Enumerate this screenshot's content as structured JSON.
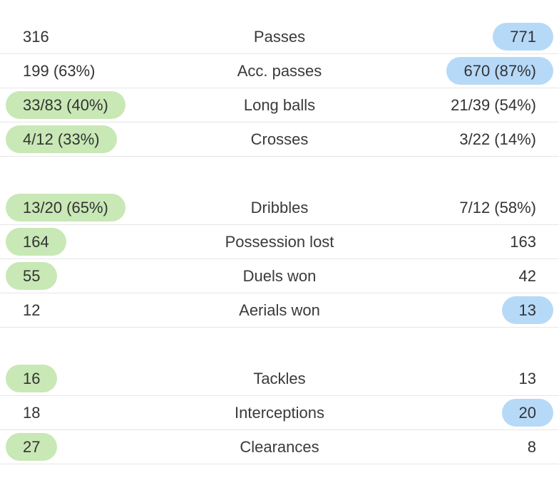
{
  "colors": {
    "home_highlight": "#c8e8b5",
    "away_highlight": "#b7d9f8",
    "divider": "#e6e6e6",
    "text": "#333333"
  },
  "groups": [
    {
      "rows": [
        {
          "label": "Passes",
          "home": "316",
          "away": "771",
          "home_highlight": false,
          "away_highlight": true
        },
        {
          "label": "Acc. passes",
          "home": "199 (63%)",
          "away": "670 (87%)",
          "home_highlight": false,
          "away_highlight": true
        },
        {
          "label": "Long balls",
          "home": "33/83 (40%)",
          "away": "21/39 (54%)",
          "home_highlight": true,
          "away_highlight": false
        },
        {
          "label": "Crosses",
          "home": "4/12 (33%)",
          "away": "3/22 (14%)",
          "home_highlight": true,
          "away_highlight": false
        }
      ]
    },
    {
      "rows": [
        {
          "label": "Dribbles",
          "home": "13/20 (65%)",
          "away": "7/12 (58%)",
          "home_highlight": true,
          "away_highlight": false
        },
        {
          "label": "Possession lost",
          "home": "164",
          "away": "163",
          "home_highlight": true,
          "away_highlight": false
        },
        {
          "label": "Duels won",
          "home": "55",
          "away": "42",
          "home_highlight": true,
          "away_highlight": false
        },
        {
          "label": "Aerials won",
          "home": "12",
          "away": "13",
          "home_highlight": false,
          "away_highlight": true
        }
      ]
    },
    {
      "rows": [
        {
          "label": "Tackles",
          "home": "16",
          "away": "13",
          "home_highlight": true,
          "away_highlight": false
        },
        {
          "label": "Interceptions",
          "home": "18",
          "away": "20",
          "home_highlight": false,
          "away_highlight": true
        },
        {
          "label": "Clearances",
          "home": "27",
          "away": "8",
          "home_highlight": true,
          "away_highlight": false
        }
      ]
    }
  ]
}
